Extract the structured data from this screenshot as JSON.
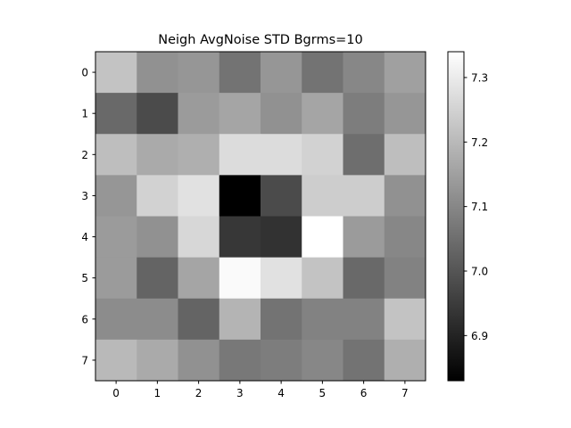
{
  "chart_data": {
    "type": "heatmap",
    "title": "Neigh AvgNoise STD Bgrms=10",
    "xlabel": "",
    "ylabel": "",
    "x_ticks": [
      "0",
      "1",
      "2",
      "3",
      "4",
      "5",
      "6",
      "7"
    ],
    "y_ticks": [
      "0",
      "1",
      "2",
      "3",
      "4",
      "5",
      "6",
      "7"
    ],
    "colormap": "gray",
    "vmin": 6.83,
    "vmax": 7.34,
    "colorbar_ticks": [
      6.9,
      7.0,
      7.1,
      7.2,
      7.3
    ],
    "colorbar_tick_labels": [
      "6.9",
      "7.0",
      "7.1",
      "7.2",
      "7.3"
    ],
    "grid": false,
    "values": [
      [
        7.22,
        7.12,
        7.13,
        7.06,
        7.13,
        7.06,
        7.1,
        7.15
      ],
      [
        7.04,
        6.98,
        7.14,
        7.16,
        7.12,
        7.16,
        7.08,
        7.13
      ],
      [
        7.21,
        7.17,
        7.18,
        7.27,
        7.27,
        7.25,
        7.05,
        7.21
      ],
      [
        7.13,
        7.25,
        7.28,
        6.83,
        6.98,
        7.24,
        7.24,
        7.12
      ],
      [
        7.14,
        7.12,
        7.26,
        6.94,
        6.93,
        7.34,
        7.14,
        7.1
      ],
      [
        7.14,
        7.03,
        7.16,
        7.33,
        7.28,
        7.22,
        7.04,
        7.09
      ],
      [
        7.11,
        7.11,
        7.03,
        7.19,
        7.06,
        7.09,
        7.09,
        7.22
      ],
      [
        7.2,
        7.17,
        7.12,
        7.07,
        7.08,
        7.1,
        7.06,
        7.18
      ]
    ]
  }
}
